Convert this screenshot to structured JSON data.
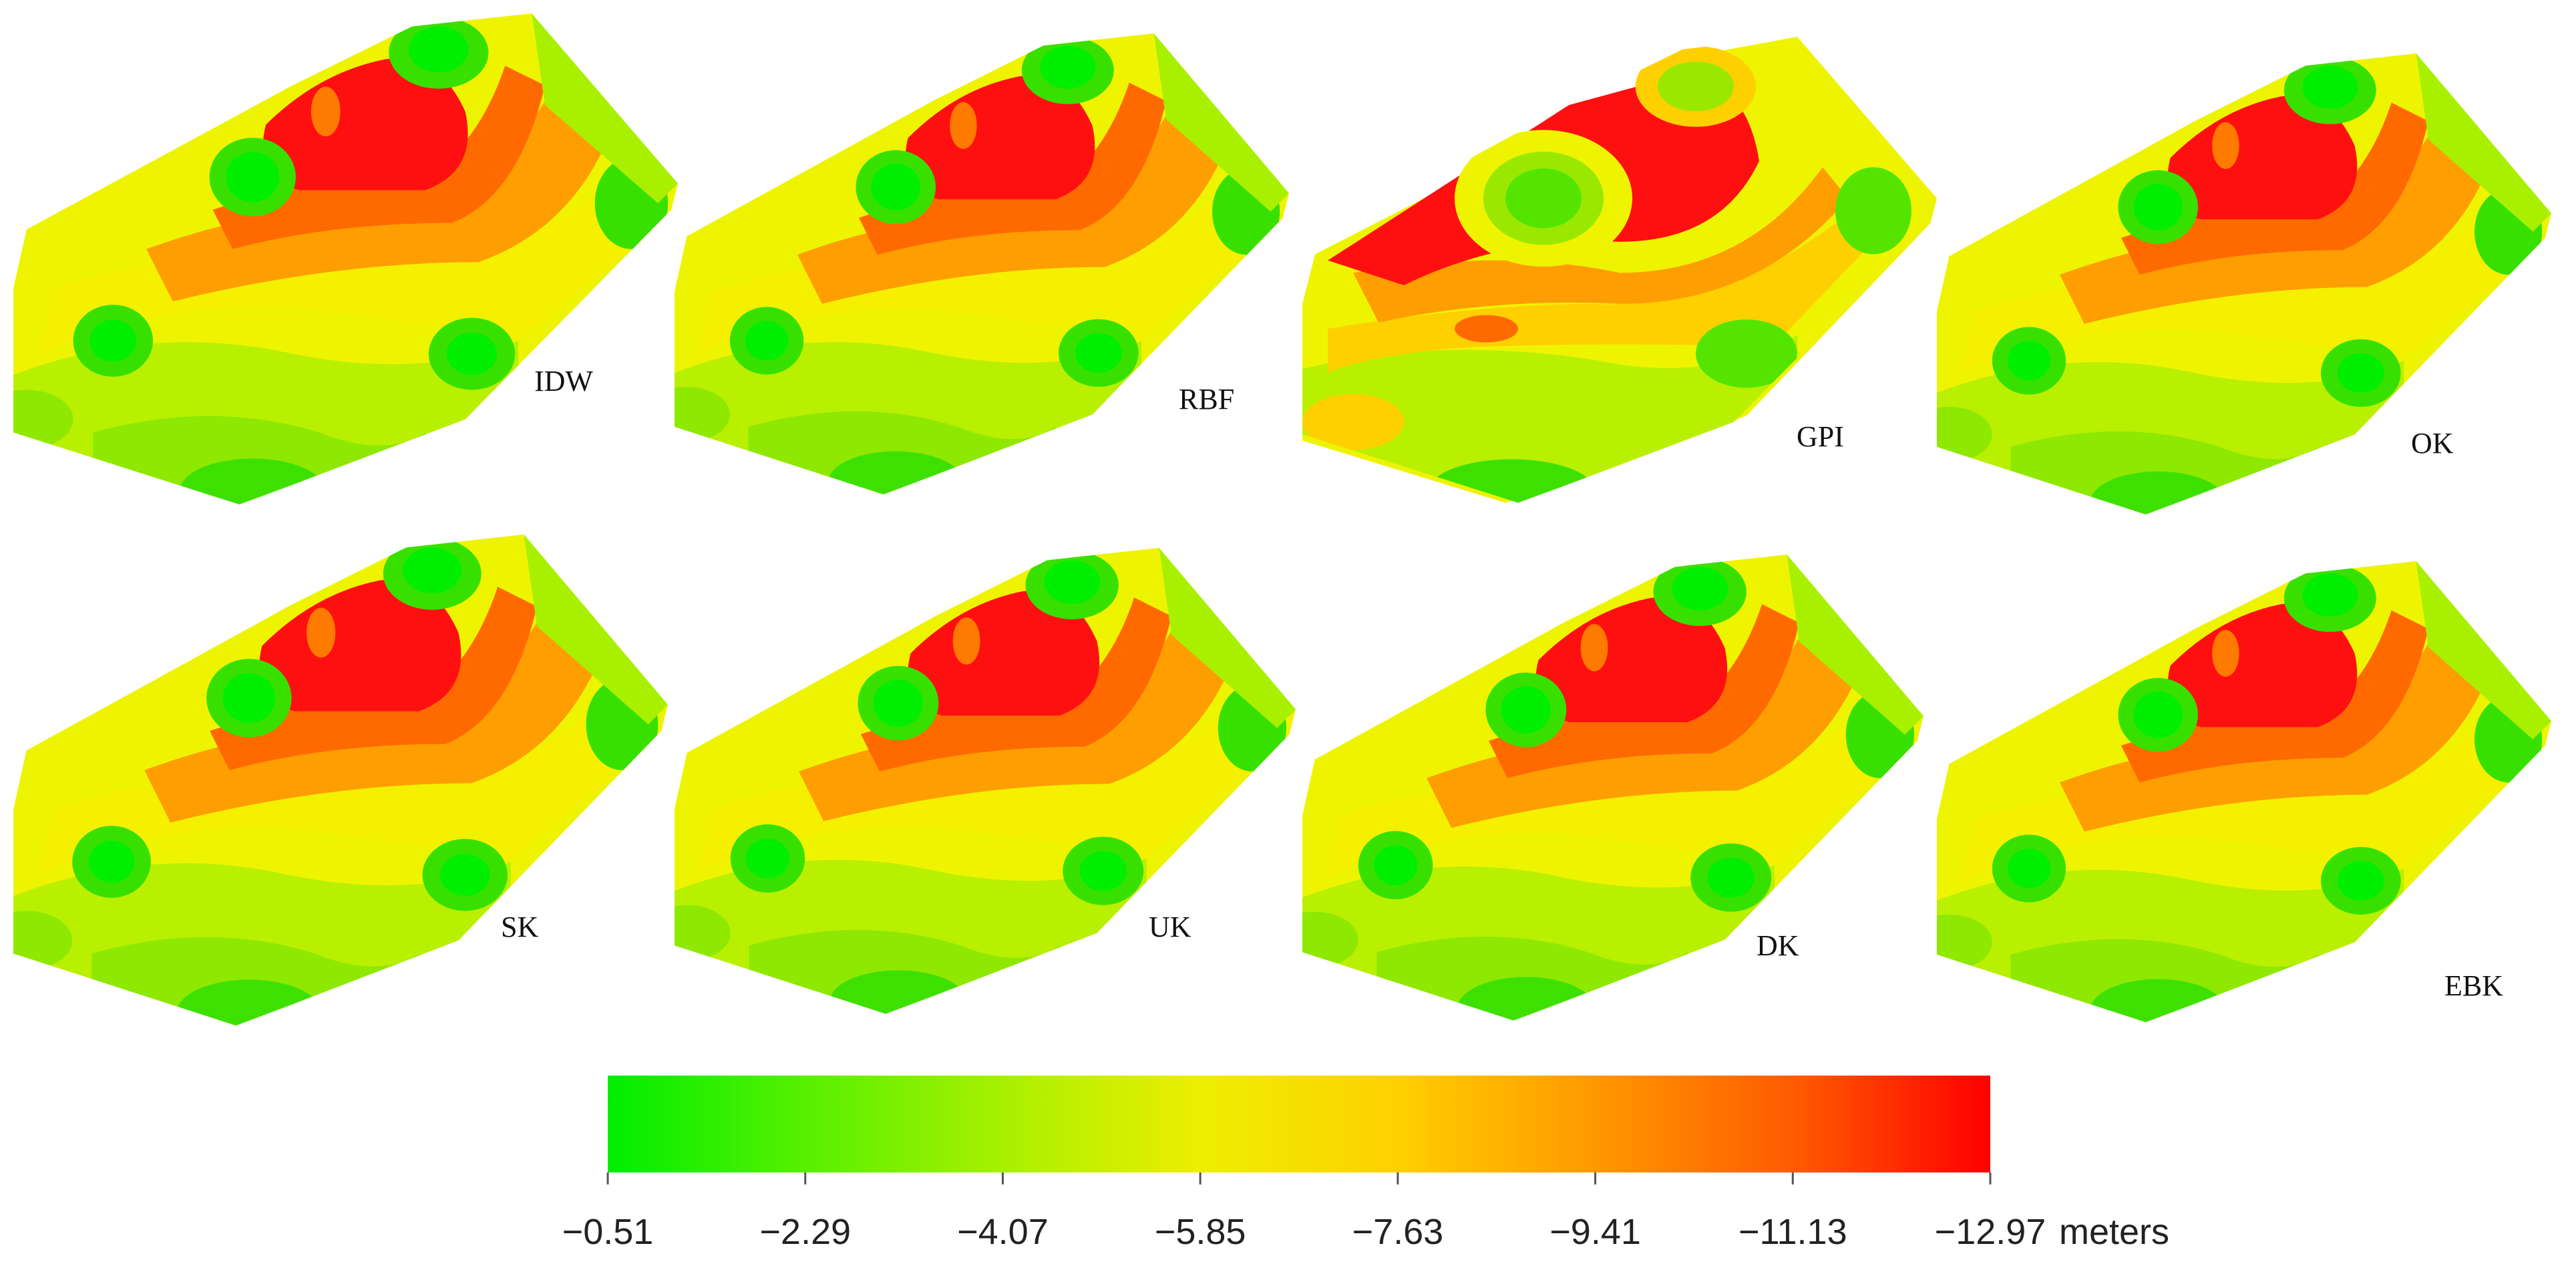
{
  "maps": [
    {
      "id": "idw",
      "label": "IDW"
    },
    {
      "id": "rbf",
      "label": "RBF"
    },
    {
      "id": "gpi",
      "label": "GPI"
    },
    {
      "id": "ok",
      "label": "OK"
    },
    {
      "id": "sk",
      "label": "SK"
    },
    {
      "id": "uk",
      "label": "UK"
    },
    {
      "id": "dk",
      "label": "DK"
    },
    {
      "id": "ebk",
      "label": "EBK"
    }
  ],
  "legend": {
    "unit": "meters",
    "ticks": [
      "−0.51",
      "−2.29",
      "−4.07",
      "−5.85",
      "−7.63",
      "−9.41",
      "−11.13",
      "−12.97"
    ],
    "colors": [
      "#00ee00",
      "#55f000",
      "#aaf000",
      "#eeee00",
      "#ffd000",
      "#ff9a00",
      "#ff5a00",
      "#ff0000"
    ]
  }
}
